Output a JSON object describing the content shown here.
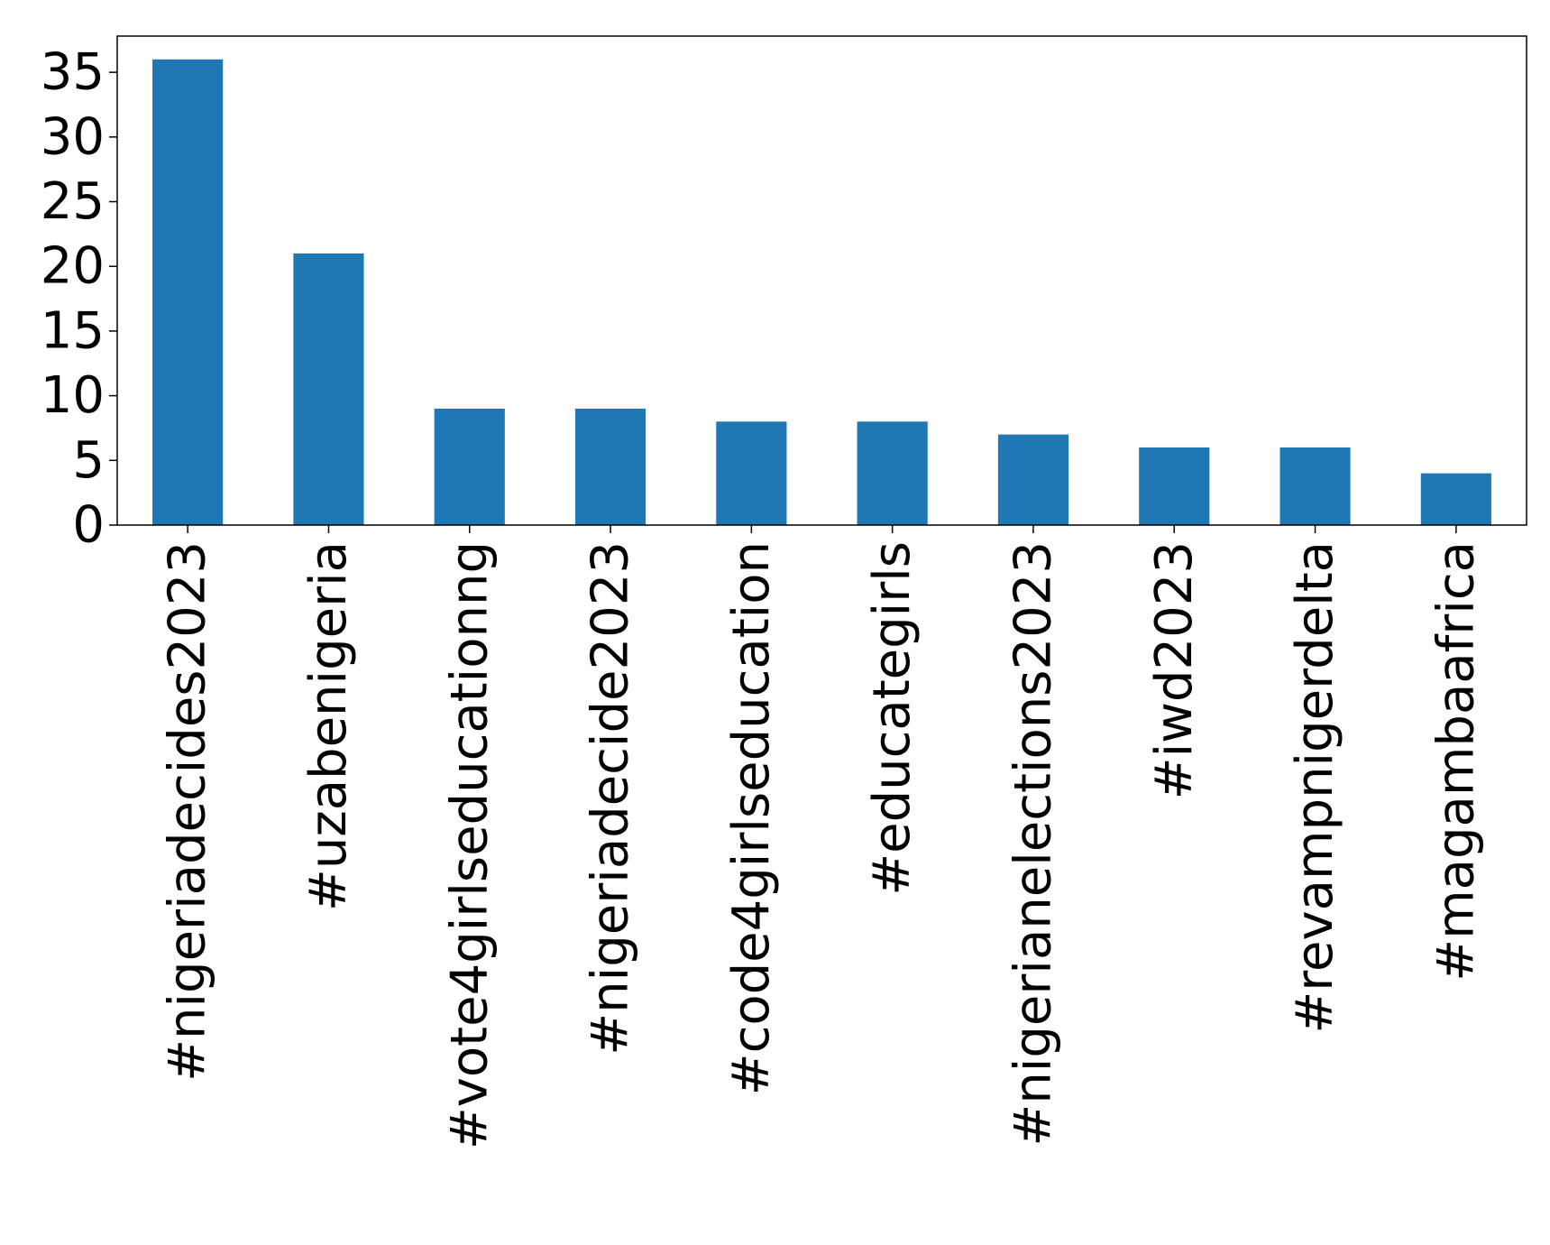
{
  "chart_data": {
    "type": "bar",
    "title": "",
    "xlabel": "",
    "ylabel": "",
    "categories": [
      "#nigeriadecides2023",
      "#uzabenigeria",
      "#vote4girlseducationng",
      "#nigeriadecide2023",
      "#code4girlseducation",
      "#educategirls",
      "#nigerianelections2023",
      "#iwd2023",
      "#revampnigerdelta",
      "#magambaafrica"
    ],
    "values": [
      36,
      21,
      9,
      9,
      8,
      8,
      7,
      6,
      6,
      4
    ],
    "ylim": [
      0,
      37.8
    ],
    "yticks": [
      0,
      5,
      10,
      15,
      20,
      25,
      30,
      35
    ],
    "grid": false,
    "legend": "none",
    "bar_color": "#1f77b4"
  }
}
